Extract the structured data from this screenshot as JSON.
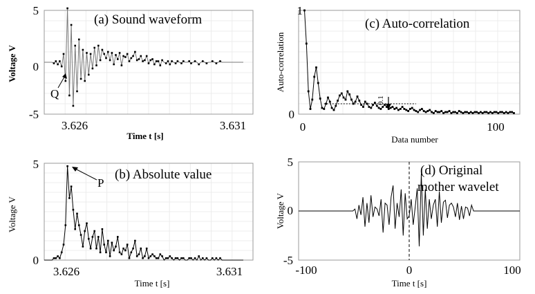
{
  "chart_data": [
    {
      "id": "a",
      "type": "line",
      "title": "(a) Sound waveform",
      "xlabel": "Time t [s]",
      "ylabel": "Voltage V",
      "xlim": [
        3.626,
        3.6314
      ],
      "ylim": [
        -5,
        5
      ],
      "x_ticks": [
        {
          "value": 3.626,
          "label": "3.626"
        },
        {
          "value": 3.631,
          "label": "3.631"
        }
      ],
      "y_ticks": [
        {
          "value": 5,
          "label": "5"
        },
        {
          "value": 0,
          "label": "0"
        },
        {
          "value": -5,
          "label": "-5"
        }
      ],
      "grid": true,
      "annotations": [
        {
          "text": "Q",
          "x": 3.6262,
          "y": 0
        }
      ],
      "series": [
        {
          "x_start": 3.6258,
          "x_step": 5e-05,
          "values": [
            0,
            0,
            0,
            0,
            0,
            0,
            0,
            0,
            0,
            -0.1,
            0.1,
            -0.2,
            0.1,
            -0.4,
            0.8,
            -1.8,
            5.2,
            -3.2,
            3.6,
            -4.2,
            1.6,
            -2.8,
            2.2,
            -1.6,
            1.2,
            -1.8,
            0.9,
            -1.2,
            0.8,
            -0.6,
            1.4,
            -0.3,
            1.6,
            0.2,
            1.2,
            0.8,
            0.4,
            1.0,
            0.2,
            0.9,
            -0.2,
            0.7,
            0.3,
            0.9,
            -0.3,
            0.6,
            0.5,
            0.8,
            0.1,
            0.4,
            0.6,
            1.0,
            0.2,
            0.3,
            0.6,
            0.1,
            0.2,
            0.6,
            -0.1,
            0.2,
            0.3,
            -0.2,
            0.1,
            0.1,
            -0.3,
            0.2,
            0,
            -0.1,
            0.1,
            -0.2,
            0.1,
            0,
            -0.1,
            0.1,
            0,
            -0.1,
            0.1,
            0,
            0,
            0.1,
            -0.1,
            0,
            0.1,
            0,
            -0.2,
            0,
            0.1,
            0,
            -0.1,
            0,
            0,
            0.1,
            0,
            -0.1,
            0,
            0.1,
            0,
            0,
            0,
            0,
            0,
            0,
            0,
            0,
            0,
            0,
            0,
            0
          ]
        }
      ]
    },
    {
      "id": "b",
      "type": "line",
      "title": "(b) Absolute value",
      "xlabel": "Time t [s]",
      "ylabel": "Voltage V",
      "xlim": [
        3.626,
        3.6314
      ],
      "ylim": [
        0,
        5
      ],
      "x_ticks": [
        {
          "value": 3.626,
          "label": "3.626"
        },
        {
          "value": 3.631,
          "label": "3.631"
        }
      ],
      "y_ticks": [
        {
          "value": 5,
          "label": "5"
        },
        {
          "value": 0,
          "label": "0"
        }
      ],
      "grid": true,
      "annotations": [
        {
          "text": "P",
          "x": 3.6263,
          "y": 4.85
        }
      ],
      "series": [
        {
          "x_start": 3.6258,
          "x_step": 5e-05,
          "values": [
            0,
            0,
            0,
            0,
            0,
            0,
            0,
            0,
            0,
            0.1,
            0.1,
            0.2,
            0.1,
            0.4,
            0.8,
            1.8,
            4.85,
            3.2,
            3.8,
            2.6,
            1.6,
            2.4,
            1.8,
            1.3,
            0.7,
            1.5,
            1.9,
            1.1,
            0.6,
            1.2,
            1.5,
            0.6,
            1.2,
            0.4,
            1.6,
            0.8,
            0.4,
            1.0,
            0.2,
            0.9,
            0.5,
            0.7,
            1.2,
            0.4,
            0.3,
            0.6,
            0.5,
            0.8,
            0.1,
            0.4,
            0.6,
            1.0,
            0.2,
            0.3,
            0.6,
            0.1,
            0.2,
            0.6,
            0.1,
            0.2,
            0.3,
            0.2,
            0.1,
            0.1,
            0.3,
            0.2,
            0,
            0.1,
            0.1,
            0.2,
            0.1,
            0,
            0.1,
            0.1,
            0,
            0.1,
            0.1,
            0,
            0,
            0.1,
            0.1,
            0,
            0.1,
            0,
            0.2,
            0,
            0.1,
            0,
            0.1,
            0,
            0,
            0.1,
            0,
            0.1,
            0,
            0.1,
            0,
            0,
            0,
            0,
            0,
            0,
            0,
            0,
            0,
            0,
            0,
            0
          ]
        }
      ]
    },
    {
      "id": "c",
      "type": "line",
      "title": "(c) Auto-correlation",
      "xlabel": "Data number",
      "ylabel": "Auto-correlation",
      "xlim": [
        -3,
        110
      ],
      "ylim": [
        0,
        1
      ],
      "x_ticks": [
        {
          "value": 0,
          "label": "0"
        },
        {
          "value": 100,
          "label": "100"
        }
      ],
      "y_ticks": [
        {
          "value": 1,
          "label": "1"
        },
        {
          "value": 0,
          "label": "0"
        }
      ],
      "grid": true,
      "annotations": [
        {
          "text": "0.1",
          "x": 52,
          "y": 0.1
        }
      ],
      "reference_line": {
        "y": 0.1,
        "x_from": 10,
        "x_to": 57
      },
      "series": [
        {
          "x_start": 0,
          "x_step": 1,
          "values": [
            1.0,
            0.68,
            0.22,
            0.05,
            0.14,
            0.36,
            0.45,
            0.3,
            0.15,
            0.06,
            0.05,
            0.1,
            0.16,
            0.12,
            0.06,
            0.04,
            0.08,
            0.13,
            0.18,
            0.2,
            0.16,
            0.14,
            0.22,
            0.19,
            0.14,
            0.1,
            0.12,
            0.17,
            0.13,
            0.09,
            0.07,
            0.12,
            0.1,
            0.07,
            0.06,
            0.09,
            0.11,
            0.08,
            0.06,
            0.05,
            0.07,
            0.09,
            0.07,
            0.05,
            0.06,
            0.07,
            0.05,
            0.06,
            0.04,
            0.05,
            0.07,
            0.05,
            0.04,
            0.03,
            0.05,
            0.06,
            0.04,
            0.03,
            0.02,
            0.04,
            0.05,
            0.03,
            0.02,
            0.03,
            0.04,
            0.02,
            0.01,
            0.03,
            0.02,
            0.02,
            0.03,
            0.01,
            0.02,
            0.02,
            0.03,
            0.01,
            0.02,
            0.02,
            0.01,
            0.03,
            0.02,
            0.01,
            0.02,
            0.02,
            0.01,
            0.02,
            0.01,
            0.02,
            0.02,
            0.01,
            0.02,
            0.01,
            0.02,
            0.02,
            0.01,
            0.02,
            0.01,
            0.02,
            0.02,
            0.01,
            0.02,
            0.02,
            0.01,
            0.02,
            0.01,
            0.02,
            0.02,
            0.01
          ]
        }
      ]
    },
    {
      "id": "d",
      "type": "line",
      "title": "(d) Original mother wavelet",
      "title_lines": [
        "(d) Original",
        "mother wavelet"
      ],
      "xlabel": "Time t [s]",
      "ylabel": "Voltage V",
      "xlim": [
        -110,
        110
      ],
      "ylim": [
        -5,
        5
      ],
      "x_ticks": [
        {
          "value": -100,
          "label": "-100"
        },
        {
          "value": 0,
          "label": "0"
        },
        {
          "value": 100,
          "label": "100"
        }
      ],
      "y_ticks": [
        {
          "value": 5,
          "label": "5"
        },
        {
          "value": 0,
          "label": "0"
        },
        {
          "value": -5,
          "label": "-5"
        }
      ],
      "grid": false,
      "reference_line": {
        "x": 0
      },
      "series": [
        {
          "x_start": -110,
          "x_step": 2,
          "values": [
            0,
            0,
            0,
            0,
            0,
            0,
            0,
            0,
            0,
            0,
            0,
            0,
            0,
            0,
            0,
            0,
            0,
            0,
            0,
            0,
            0,
            0,
            0,
            0,
            0,
            0,
            0,
            0,
            0.2,
            -0.8,
            0.6,
            -0.4,
            1.4,
            -1.6,
            0.8,
            -1.2,
            1.6,
            -0.6,
            0.4,
            0.2,
            -0.5,
            1.2,
            -2.2,
            0.8,
            0.6,
            -1.4,
            1.4,
            2.6,
            -1.8,
            0.8,
            -0.6,
            2.2,
            -2.5,
            1.8,
            -0.8,
            -0.5,
            1.2,
            -1.4,
            0.4,
            2.3,
            -3.6,
            3.8,
            -2.5,
            2.2,
            -1.8,
            1.2,
            -0.8,
            0.6,
            1.2,
            -1.6,
            2.0,
            -1.2,
            0.9,
            1.1,
            -0.7,
            0.6,
            0.8,
            0.4,
            -0.6,
            0.8,
            -0.9,
            0.5,
            -0.8,
            0.4,
            0.3,
            -0.5,
            0.6,
            0,
            0,
            0,
            0,
            0,
            0,
            0,
            0,
            0,
            0,
            0,
            0,
            0,
            0,
            0,
            0,
            0,
            0,
            0,
            0,
            0,
            0,
            0,
            0,
            0,
            0,
            0,
            0,
            0,
            0,
            0,
            0
          ]
        }
      ]
    }
  ]
}
